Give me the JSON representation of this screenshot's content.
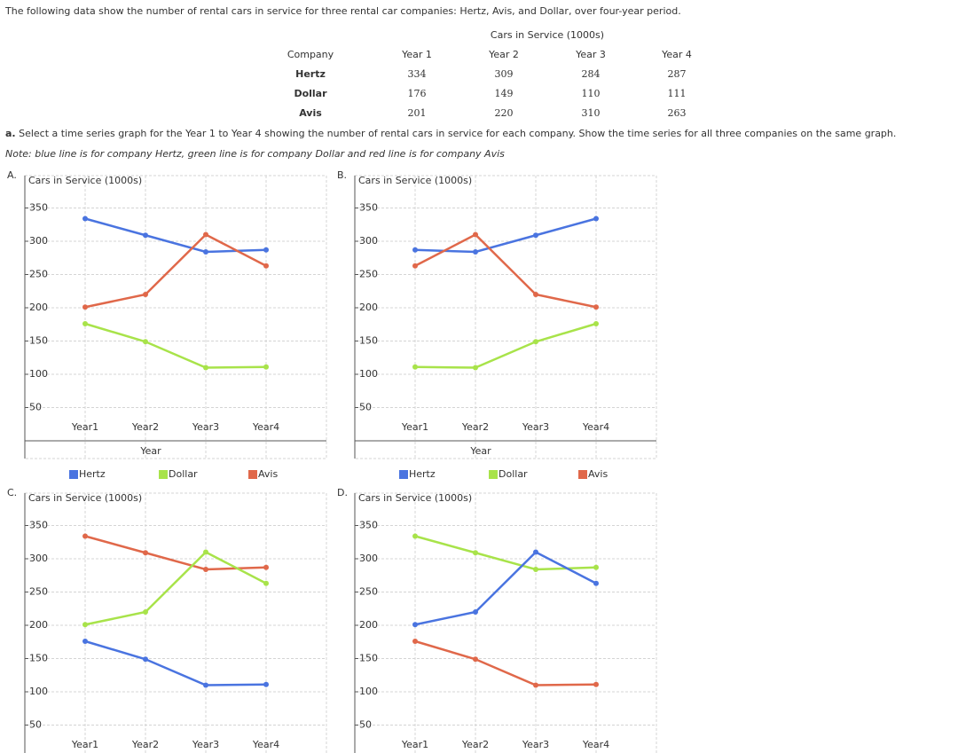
{
  "intro": "The following data show the number of rental cars in service for three rental car companies: Hertz, Avis, and Dollar, over four-year period.",
  "table": {
    "title": "Cars in Service (1000s)",
    "header": [
      "Company",
      "Year 1",
      "Year 2",
      "Year 3",
      "Year 4"
    ],
    "rows": [
      [
        "Hertz",
        334,
        309,
        284,
        287
      ],
      [
        "Dollar",
        176,
        149,
        110,
        111
      ],
      [
        "Avis",
        201,
        220,
        310,
        263
      ]
    ]
  },
  "question": {
    "label": "a.",
    "text": "Select a time series graph for the Year 1 to Year 4 showing the number of rental cars in service for each company. Show the time series for all three companies on the same graph."
  },
  "note": "Note: blue line is for company Hertz, green line is for company Dollar and red line is for company Avis",
  "options": [
    "A.",
    "B.",
    "C.",
    "D."
  ],
  "chart_data": [
    {
      "type": "line",
      "y_label": "Cars in Service (1000s)",
      "x_label": "Year",
      "categories": [
        "Year1",
        "Year2",
        "Year3",
        "Year4"
      ],
      "series": [
        {
          "name": "Hertz",
          "color": "#4a74e0",
          "values": [
            334,
            309,
            284,
            287
          ]
        },
        {
          "name": "Dollar",
          "color": "#a8e34a",
          "values": [
            176,
            149,
            110,
            111
          ]
        },
        {
          "name": "Avis",
          "color": "#e0684a",
          "values": [
            201,
            220,
            310,
            263
          ]
        }
      ],
      "ylim": [
        0,
        400
      ],
      "yticks": [
        50,
        100,
        150,
        200,
        250,
        300,
        350
      ],
      "grid": true
    },
    {
      "type": "line",
      "y_label": "Cars in Service (1000s)",
      "x_label": "Year",
      "categories": [
        "Year1",
        "Year2",
        "Year3",
        "Year4"
      ],
      "series": [
        {
          "name": "Hertz",
          "color": "#4a74e0",
          "values": [
            287,
            284,
            309,
            334
          ]
        },
        {
          "name": "Dollar",
          "color": "#a8e34a",
          "values": [
            111,
            110,
            149,
            176
          ]
        },
        {
          "name": "Avis",
          "color": "#e0684a",
          "values": [
            263,
            310,
            220,
            201
          ]
        }
      ],
      "ylim": [
        0,
        400
      ],
      "yticks": [
        50,
        100,
        150,
        200,
        250,
        300,
        350
      ],
      "grid": true
    },
    {
      "type": "line",
      "y_label": "Cars in Service (1000s)",
      "categories": [
        "Year1",
        "Year2",
        "Year3",
        "Year4"
      ],
      "series": [
        {
          "color": "#e0684a",
          "values": [
            334,
            309,
            284,
            287
          ]
        },
        {
          "color": "#a8e34a",
          "values": [
            201,
            220,
            310,
            263
          ]
        },
        {
          "color": "#4a74e0",
          "values": [
            176,
            149,
            110,
            111
          ]
        }
      ],
      "ylim": [
        0,
        400
      ],
      "yticks": [
        50,
        100,
        150,
        200,
        250,
        300,
        350
      ],
      "grid": true
    },
    {
      "type": "line",
      "y_label": "Cars in Service (1000s)",
      "categories": [
        "Year1",
        "Year2",
        "Year3",
        "Year4"
      ],
      "series": [
        {
          "color": "#a8e34a",
          "values": [
            334,
            309,
            284,
            287
          ]
        },
        {
          "color": "#4a74e0",
          "values": [
            201,
            220,
            310,
            263
          ]
        },
        {
          "color": "#e0684a",
          "values": [
            176,
            149,
            110,
            111
          ]
        }
      ],
      "ylim": [
        0,
        400
      ],
      "yticks": [
        50,
        100,
        150,
        200,
        250,
        300,
        350
      ],
      "grid": true
    }
  ]
}
